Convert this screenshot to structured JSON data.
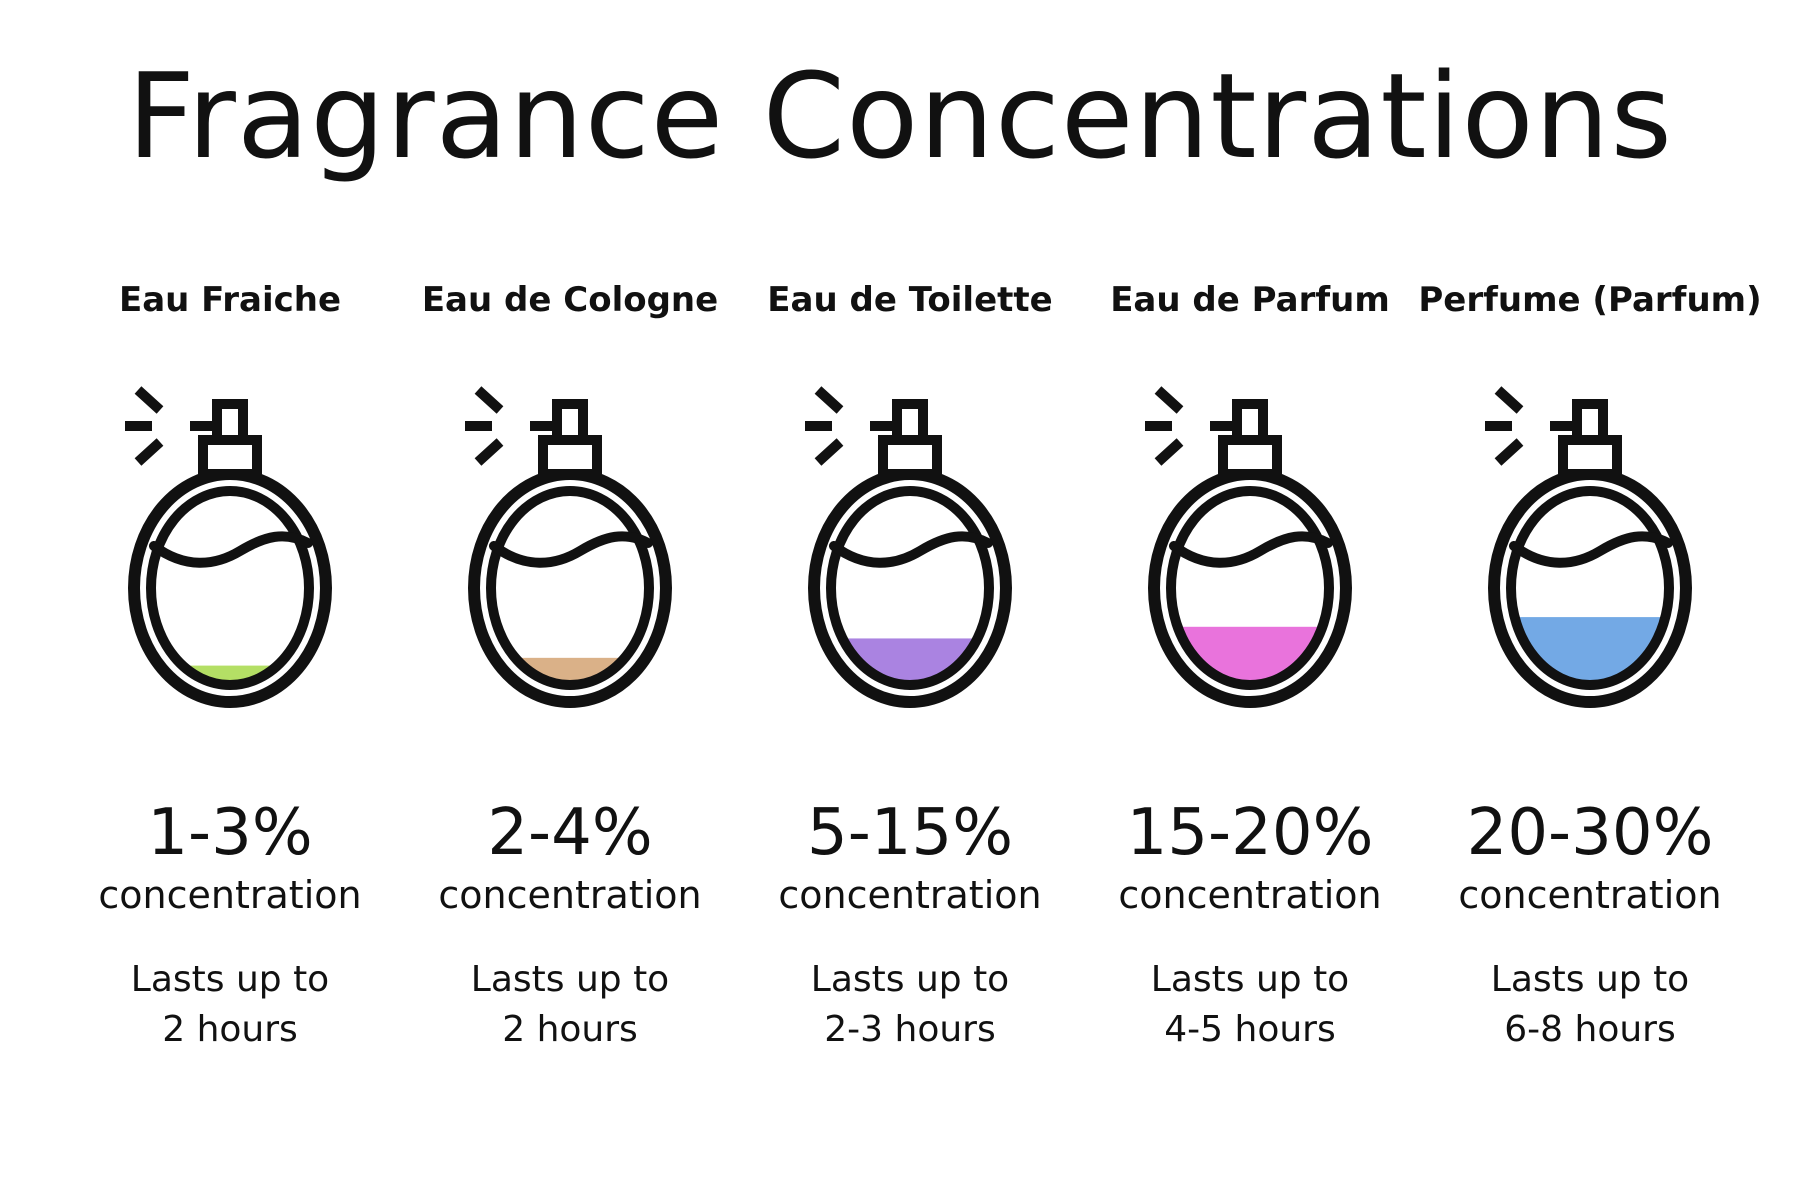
{
  "title": "Fragrance Concentrations",
  "items": [
    {
      "name": "Eau Fraiche",
      "percent": "1-3%",
      "concentration_label": "concentration",
      "lasts_line1": "Lasts up to",
      "lasts_line2": "2 hours",
      "fill_color": "#a7d94a",
      "fill_level": 0.1
    },
    {
      "name": "Eau de Cologne",
      "percent": "2-4%",
      "concentration_label": "concentration",
      "lasts_line1": "Lasts up to",
      "lasts_line2": "2 hours",
      "fill_color": "#d4a373",
      "fill_level": 0.14
    },
    {
      "name": "Eau de Toilette",
      "percent": "5-15%",
      "concentration_label": "concentration",
      "lasts_line1": "Lasts up to",
      "lasts_line2": "2-3 hours",
      "fill_color": "#9b6ddc",
      "fill_level": 0.24
    },
    {
      "name": "Eau de Parfum",
      "percent": "15-20%",
      "concentration_label": "concentration",
      "lasts_line1": "Lasts up to",
      "lasts_line2": "4-5 hours",
      "fill_color": "#e55ad6",
      "fill_level": 0.3
    },
    {
      "name": "Perfume (Parfum)",
      "percent": "20-30%",
      "concentration_label": "concentration",
      "lasts_line1": "Lasts up to",
      "lasts_line2": "6-8 hours",
      "fill_color": "#5a9ae0",
      "fill_level": 0.35
    }
  ]
}
